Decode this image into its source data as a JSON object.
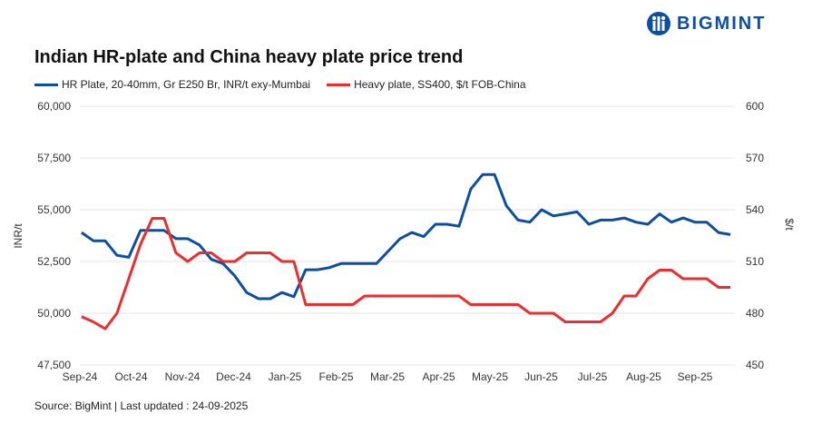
{
  "brand": {
    "name": "BIGMINT",
    "color": "#0b4ea2"
  },
  "source": "Source: BigMint | Last updated : 24-09-2025",
  "chart_data": {
    "type": "line",
    "title": "Indian HR-plate and China heavy plate price trend",
    "ylabel": "INR/t",
    "y2label": "$/t",
    "ylim": [
      47500,
      60000
    ],
    "y2lim": [
      450,
      600
    ],
    "yticks": [
      "47,500",
      "50,000",
      "52,500",
      "55,000",
      "57,500",
      "60,000"
    ],
    "y2ticks": [
      "450",
      "480",
      "510",
      "540",
      "570",
      "600"
    ],
    "xticks": [
      "Sep-24",
      "Oct-24",
      "Nov-24",
      "Dec-24",
      "Jan-25",
      "Feb-25",
      "Mar-25",
      "Apr-25",
      "May-25",
      "Jun-25",
      "Jul-25",
      "Aug-25",
      "Sep-25"
    ],
    "grid": "horizontal",
    "legend": "top-left",
    "x": [
      "2024-09-02",
      "2024-09-09",
      "2024-09-16",
      "2024-09-23",
      "2024-09-30",
      "2024-10-07",
      "2024-10-14",
      "2024-10-21",
      "2024-10-28",
      "2024-11-04",
      "2024-11-11",
      "2024-11-18",
      "2024-11-25",
      "2024-12-02",
      "2024-12-09",
      "2024-12-16",
      "2024-12-23",
      "2024-12-30",
      "2025-01-06",
      "2025-01-13",
      "2025-01-20",
      "2025-01-27",
      "2025-02-03",
      "2025-02-10",
      "2025-02-17",
      "2025-02-24",
      "2025-03-03",
      "2025-03-10",
      "2025-03-17",
      "2025-03-24",
      "2025-03-31",
      "2025-04-07",
      "2025-04-14",
      "2025-04-21",
      "2025-04-28",
      "2025-05-05",
      "2025-05-12",
      "2025-05-19",
      "2025-05-26",
      "2025-06-02",
      "2025-06-09",
      "2025-06-16",
      "2025-06-23",
      "2025-06-30",
      "2025-07-07",
      "2025-07-14",
      "2025-07-21",
      "2025-07-28",
      "2025-08-04",
      "2025-08-11",
      "2025-08-18",
      "2025-08-25",
      "2025-09-01",
      "2025-09-08",
      "2025-09-15",
      "2025-09-22"
    ],
    "series": [
      {
        "name": "HR Plate, 20-40mm, Gr E250 Br, INR/t exy-Mumbai",
        "axis": "left",
        "color": "#0b4ea2",
        "values": [
          53900,
          53500,
          53500,
          52800,
          52700,
          54000,
          54000,
          54000,
          53600,
          53600,
          53300,
          52600,
          52400,
          51800,
          51000,
          50700,
          50700,
          51000,
          50800,
          52100,
          52100,
          52200,
          52400,
          52400,
          52400,
          52400,
          53000,
          53600,
          53900,
          53700,
          54300,
          54300,
          54200,
          56000,
          56700,
          56700,
          55200,
          54500,
          54400,
          55000,
          54700,
          54800,
          54900,
          54300,
          54500,
          54500,
          54600,
          54400,
          54300,
          54800,
          54400,
          54600,
          54400,
          54400,
          53900,
          53800
        ]
      },
      {
        "name": "Heavy plate, SS400, $/t FOB-China",
        "axis": "right",
        "color": "#ee2e2e",
        "values": [
          478,
          475,
          471,
          480,
          500,
          520,
          535,
          535,
          515,
          510,
          515,
          515,
          510,
          510,
          515,
          515,
          515,
          510,
          510,
          485,
          485,
          485,
          485,
          485,
          490,
          490,
          490,
          490,
          490,
          490,
          490,
          490,
          490,
          485,
          485,
          485,
          485,
          485,
          480,
          480,
          480,
          475,
          475,
          475,
          475,
          480,
          490,
          490,
          500,
          505,
          505,
          500,
          500,
          500,
          495,
          495
        ]
      }
    ]
  }
}
